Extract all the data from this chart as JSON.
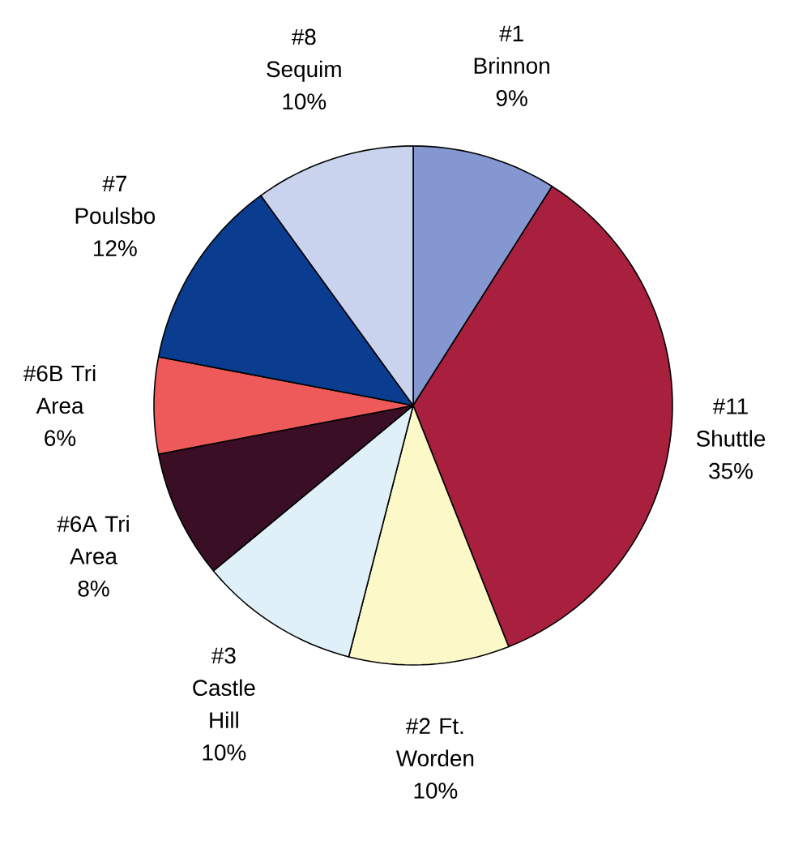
{
  "chart_data": {
    "type": "pie",
    "categories": [
      "#1 Brinnon",
      "#11 Shuttle",
      "#2 Ft. Worden",
      "#3 Castle Hill",
      "#6A Tri Area",
      "#6B Tri Area",
      "#7 Poulsbo",
      "#8 Sequim"
    ],
    "values": [
      9,
      35,
      10,
      10,
      8,
      6,
      12,
      10
    ],
    "value_labels": [
      "9%",
      "35%",
      "10%",
      "10%",
      "8%",
      "6%",
      "12%",
      "10%"
    ],
    "colors": [
      "#8497d0",
      "#a8203e",
      "#fdf8c8",
      "#dff0f8",
      "#3a0e24",
      "#ee5a5a",
      "#0a3d8f",
      "#c9d3ee"
    ]
  }
}
